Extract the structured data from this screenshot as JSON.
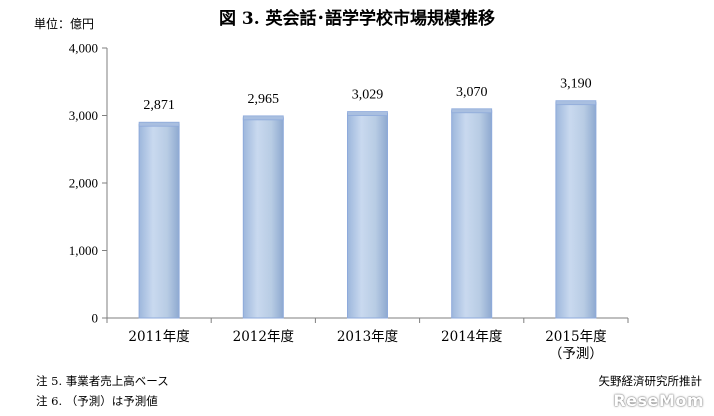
{
  "chart_data": {
    "type": "bar",
    "title": "図 3.  英会話･語学学校市場規模推移",
    "unit_label": "単位：億円",
    "categories": [
      [
        "2011年度"
      ],
      [
        "2012年度"
      ],
      [
        "2013年度"
      ],
      [
        "2014年度"
      ],
      [
        "2015年度",
        "（予測）"
      ]
    ],
    "values": [
      2871,
      2965,
      3029,
      3070,
      3190
    ],
    "value_labels": [
      "2,871",
      "2,965",
      "3,029",
      "3,070",
      "3,190"
    ],
    "ylim": [
      0,
      4000
    ],
    "yticks": [
      0,
      1000,
      2000,
      3000,
      4000
    ],
    "ytick_labels": [
      "0",
      "1,000",
      "2,000",
      "3,000",
      "4,000"
    ],
    "grid": false,
    "bar_color": "#b8cce4",
    "bar_edge_color": "#8eaadb"
  },
  "notes": [
    "注 5.  事業者売上高ベース",
    "注 6. （予測）は予測値"
  ],
  "source": "矢野経済研究所推計",
  "watermark": "ReseMom"
}
